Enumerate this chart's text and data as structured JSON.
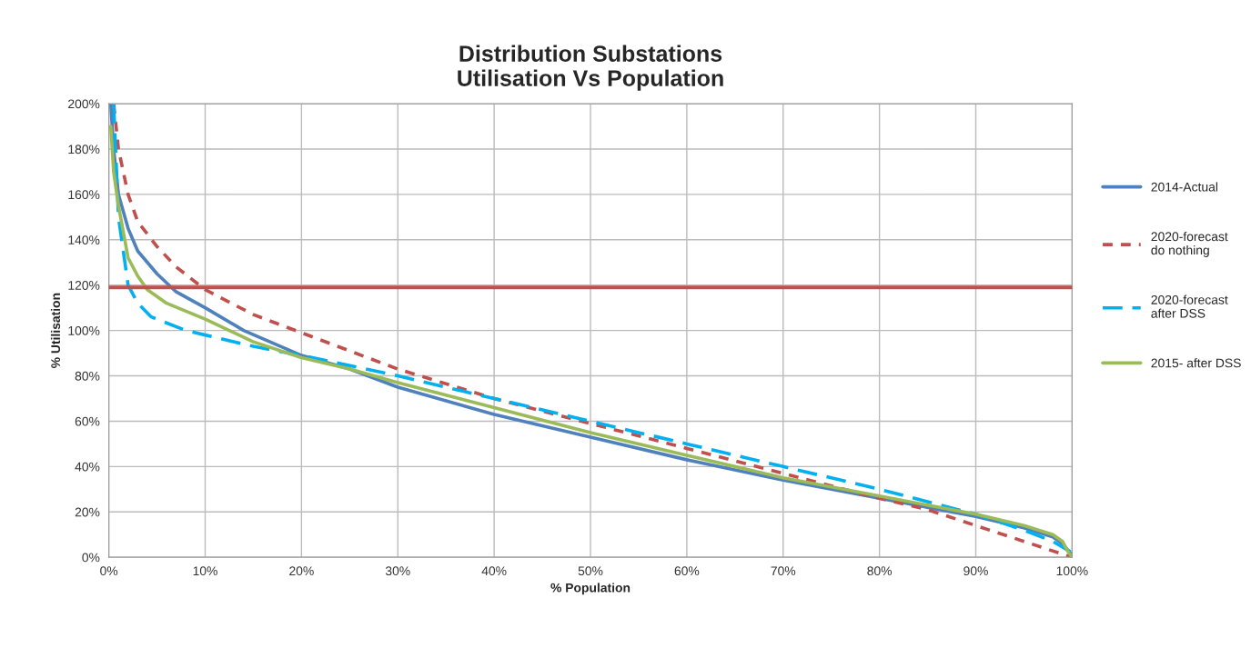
{
  "chart_data": {
    "type": "line",
    "title": "Distribution Substations\nUtilisation Vs Population",
    "xlabel": "% Population",
    "ylabel": "% Utilisation",
    "xlim": [
      0,
      100
    ],
    "xticks": [
      {
        "value": 0,
        "label": "0%"
      },
      {
        "value": 10,
        "label": "10%"
      },
      {
        "value": 20,
        "label": "20%"
      },
      {
        "value": 30,
        "label": "30%"
      },
      {
        "value": 40,
        "label": "40%"
      },
      {
        "value": 50,
        "label": "50%"
      },
      {
        "value": 60,
        "label": "60%"
      },
      {
        "value": 70,
        "label": "70%"
      },
      {
        "value": 80,
        "label": "80%"
      },
      {
        "value": 90,
        "label": "90%"
      },
      {
        "value": 100,
        "label": "100%"
      }
    ],
    "ylim": [
      0,
      200
    ],
    "yticks": [
      {
        "value": 0,
        "label": "0%"
      },
      {
        "value": 20,
        "label": "20%"
      },
      {
        "value": 40,
        "label": "40%"
      },
      {
        "value": 60,
        "label": "60%"
      },
      {
        "value": 80,
        "label": "80%"
      },
      {
        "value": 100,
        "label": "100%"
      },
      {
        "value": 120,
        "label": "120%"
      },
      {
        "value": 140,
        "label": "140%"
      },
      {
        "value": 160,
        "label": "160%"
      },
      {
        "value": 180,
        "label": "180%"
      },
      {
        "value": 200,
        "label": "200%"
      }
    ],
    "grid": true,
    "legend": "right",
    "ref_lines": [
      {
        "axis": "y",
        "value": 119,
        "color": "#c0504d",
        "line_style": "solid"
      }
    ],
    "series": [
      {
        "name": "2014-Actual",
        "color": "#4f81bd",
        "line_style": "solid",
        "x": [
          0.2,
          0.5,
          1,
          2,
          3,
          5,
          7,
          10,
          14,
          20,
          25,
          30,
          40,
          50,
          60,
          70,
          80,
          90,
          95,
          98,
          99,
          100
        ],
        "values": [
          200,
          180,
          160,
          145,
          135,
          125,
          117,
          110,
          100,
          89,
          83,
          75,
          63,
          53,
          43,
          34,
          26,
          18,
          13,
          9,
          6,
          1
        ]
      },
      {
        "name": "2020-forecast\ndo nothing",
        "color": "#c0504d",
        "line_style": "dotted",
        "x": [
          0.5,
          1,
          2,
          3,
          5,
          7,
          10,
          15,
          20,
          25,
          30,
          40,
          50,
          60,
          70,
          80,
          85,
          90,
          95,
          100
        ],
        "values": [
          200,
          180,
          160,
          148,
          137,
          128,
          118,
          107,
          99,
          91,
          83,
          70,
          59,
          48,
          37,
          26,
          21,
          14,
          7,
          0
        ]
      },
      {
        "name": "2020-forecast\nafter DSS",
        "color": "#00b0f0",
        "line_style": "dashed",
        "x": [
          0.5,
          0.8,
          1,
          2,
          3,
          4.4,
          8,
          10,
          15,
          20,
          30,
          40,
          50,
          60,
          70,
          80,
          90,
          95,
          98,
          100
        ],
        "values": [
          200,
          170,
          150,
          120,
          112,
          106,
          100,
          98,
          93,
          89,
          80,
          70,
          60,
          50,
          40,
          30,
          19,
          12,
          7,
          2
        ]
      },
      {
        "name": "2015- after DSS",
        "color": "#9bbb59",
        "line_style": "solid",
        "x": [
          0.2,
          0.5,
          1,
          2,
          3,
          4,
          6,
          10,
          15,
          20,
          25,
          30,
          40,
          50,
          60,
          70,
          80,
          90,
          95,
          98,
          99,
          99.5,
          100
        ],
        "values": [
          190,
          170,
          155,
          132,
          124,
          118,
          112,
          105,
          95,
          88,
          83,
          77,
          66,
          55,
          45,
          35,
          27,
          19,
          14,
          10,
          7,
          3,
          0
        ]
      }
    ]
  }
}
